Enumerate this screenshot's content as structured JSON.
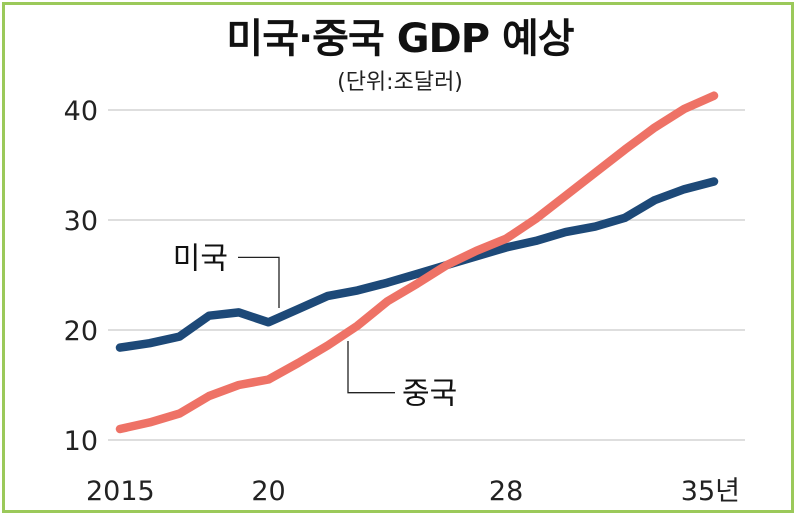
{
  "chart_data": {
    "type": "line",
    "title": "미국·중국 GDP 예상",
    "subtitle": "(단위:조달러)",
    "x_ticks": [
      {
        "x": 2015,
        "label": "2015"
      },
      {
        "x": 2020,
        "label": "20"
      },
      {
        "x": 2028,
        "label": "28"
      },
      {
        "x": 2035,
        "label": "35년"
      }
    ],
    "y_ticks": [
      10,
      20,
      30,
      40
    ],
    "xlim": [
      2015,
      2035
    ],
    "ylim": [
      10,
      40
    ],
    "grid": "horizontal",
    "series": [
      {
        "name": "미국",
        "color": "#1d4978",
        "x": [
          2015,
          2016,
          2017,
          2018,
          2019,
          2020,
          2021,
          2022,
          2023,
          2024,
          2025,
          2026,
          2027,
          2028,
          2029,
          2030,
          2031,
          2032,
          2033,
          2034,
          2035
        ],
        "values": [
          18.4,
          18.8,
          19.4,
          21.3,
          21.6,
          20.7,
          21.9,
          23.1,
          23.6,
          24.3,
          25.1,
          25.9,
          26.7,
          27.5,
          28.1,
          28.9,
          29.4,
          30.2,
          31.8,
          32.8,
          33.5
        ]
      },
      {
        "name": "중국",
        "color": "#ee7266",
        "x": [
          2015,
          2016,
          2017,
          2018,
          2019,
          2020,
          2021,
          2022,
          2023,
          2024,
          2025,
          2026,
          2027,
          2028,
          2029,
          2030,
          2031,
          2032,
          2033,
          2034,
          2035
        ],
        "values": [
          11.0,
          11.6,
          12.4,
          14.0,
          15.0,
          15.5,
          17.0,
          18.6,
          20.4,
          22.6,
          24.2,
          25.9,
          27.2,
          28.3,
          30.1,
          32.2,
          34.3,
          36.4,
          38.4,
          40.1,
          41.3
        ]
      }
    ]
  }
}
